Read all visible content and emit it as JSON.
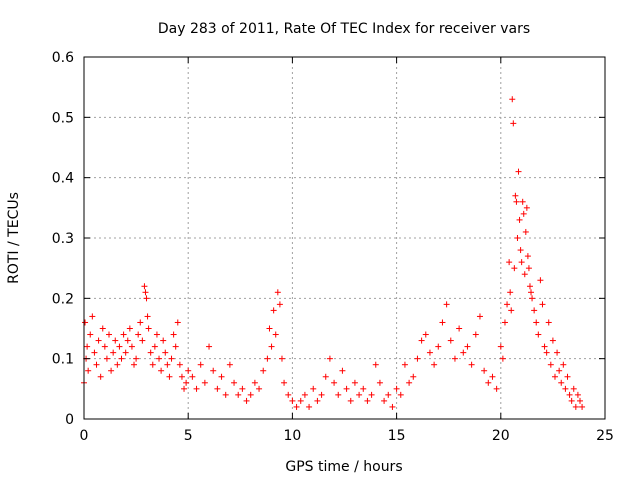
{
  "chart_data": {
    "type": "scatter",
    "title": "Day 283 of 2011, Rate Of TEC Index for receiver vars",
    "xlabel": "GPS time / hours",
    "ylabel": "ROTI / TECUs",
    "xlim": [
      0,
      25
    ],
    "ylim": [
      0,
      0.6
    ],
    "x_ticks": [
      0,
      5,
      10,
      15,
      20,
      25
    ],
    "x_tick_labels": [
      "0",
      "5",
      "10",
      "15",
      "20",
      "25"
    ],
    "y_ticks": [
      0,
      0.1,
      0.2,
      0.3,
      0.4,
      0.5,
      0.6
    ],
    "y_tick_labels": [
      "0",
      "0.1",
      "0.2",
      "0.3",
      "0.4",
      "0.5",
      "0.6"
    ],
    "grid": true,
    "marker": "+",
    "marker_color": "#ff0000",
    "series": [
      {
        "name": "ROTI",
        "x": [
          0.0,
          0.05,
          0.1,
          0.15,
          0.2,
          0.3,
          0.4,
          0.5,
          0.6,
          0.7,
          0.8,
          0.9,
          1.0,
          1.1,
          1.2,
          1.3,
          1.4,
          1.5,
          1.6,
          1.7,
          1.8,
          1.9,
          2.0,
          2.1,
          2.2,
          2.3,
          2.4,
          2.5,
          2.6,
          2.7,
          2.8,
          2.9,
          2.95,
          3.0,
          3.05,
          3.1,
          3.2,
          3.3,
          3.4,
          3.5,
          3.6,
          3.7,
          3.8,
          3.9,
          4.0,
          4.1,
          4.2,
          4.3,
          4.4,
          4.5,
          4.6,
          4.7,
          4.8,
          4.9,
          5.0,
          5.2,
          5.4,
          5.6,
          5.8,
          6.0,
          6.2,
          6.4,
          6.6,
          6.8,
          7.0,
          7.2,
          7.4,
          7.6,
          7.8,
          8.0,
          8.2,
          8.4,
          8.6,
          8.8,
          8.9,
          9.0,
          9.1,
          9.2,
          9.3,
          9.4,
          9.5,
          9.6,
          9.8,
          10.0,
          10.2,
          10.4,
          10.6,
          10.8,
          11.0,
          11.2,
          11.4,
          11.6,
          11.8,
          12.0,
          12.2,
          12.4,
          12.6,
          12.8,
          13.0,
          13.2,
          13.4,
          13.6,
          13.8,
          14.0,
          14.2,
          14.4,
          14.6,
          14.8,
          15.0,
          15.2,
          15.4,
          15.6,
          15.8,
          16.0,
          16.2,
          16.4,
          16.6,
          16.8,
          17.0,
          17.2,
          17.4,
          17.6,
          17.8,
          18.0,
          18.2,
          18.4,
          18.6,
          18.8,
          19.0,
          19.2,
          19.4,
          19.6,
          19.8,
          20.0,
          20.1,
          20.2,
          20.3,
          20.4,
          20.45,
          20.5,
          20.55,
          20.6,
          20.65,
          20.7,
          20.75,
          20.8,
          20.85,
          20.9,
          20.95,
          21.0,
          21.05,
          21.1,
          21.15,
          21.2,
          21.25,
          21.3,
          21.35,
          21.4,
          21.45,
          21.5,
          21.6,
          21.7,
          21.8,
          21.9,
          22.0,
          22.1,
          22.2,
          22.3,
          22.4,
          22.5,
          22.6,
          22.7,
          22.8,
          22.9,
          23.0,
          23.1,
          23.2,
          23.3,
          23.4,
          23.5,
          23.6,
          23.7,
          23.8,
          23.9
        ],
        "y": [
          0.06,
          0.16,
          0.1,
          0.12,
          0.08,
          0.14,
          0.17,
          0.11,
          0.09,
          0.13,
          0.07,
          0.15,
          0.12,
          0.1,
          0.14,
          0.08,
          0.11,
          0.13,
          0.09,
          0.12,
          0.1,
          0.14,
          0.11,
          0.13,
          0.15,
          0.12,
          0.09,
          0.1,
          0.14,
          0.16,
          0.13,
          0.22,
          0.21,
          0.2,
          0.17,
          0.15,
          0.11,
          0.09,
          0.12,
          0.14,
          0.1,
          0.08,
          0.13,
          0.11,
          0.09,
          0.07,
          0.1,
          0.14,
          0.12,
          0.16,
          0.09,
          0.07,
          0.05,
          0.06,
          0.08,
          0.07,
          0.05,
          0.09,
          0.06,
          0.12,
          0.08,
          0.05,
          0.07,
          0.04,
          0.09,
          0.06,
          0.04,
          0.05,
          0.03,
          0.04,
          0.06,
          0.05,
          0.08,
          0.1,
          0.15,
          0.12,
          0.18,
          0.14,
          0.21,
          0.19,
          0.1,
          0.06,
          0.04,
          0.03,
          0.02,
          0.03,
          0.04,
          0.02,
          0.05,
          0.03,
          0.04,
          0.07,
          0.1,
          0.06,
          0.04,
          0.08,
          0.05,
          0.03,
          0.06,
          0.04,
          0.05,
          0.03,
          0.04,
          0.09,
          0.06,
          0.03,
          0.04,
          0.02,
          0.05,
          0.04,
          0.09,
          0.06,
          0.07,
          0.1,
          0.13,
          0.14,
          0.11,
          0.09,
          0.12,
          0.16,
          0.19,
          0.13,
          0.1,
          0.15,
          0.11,
          0.12,
          0.09,
          0.14,
          0.17,
          0.08,
          0.06,
          0.07,
          0.05,
          0.12,
          0.1,
          0.16,
          0.19,
          0.26,
          0.21,
          0.18,
          0.53,
          0.49,
          0.25,
          0.37,
          0.36,
          0.3,
          0.41,
          0.33,
          0.28,
          0.26,
          0.36,
          0.34,
          0.24,
          0.31,
          0.35,
          0.27,
          0.25,
          0.22,
          0.21,
          0.2,
          0.18,
          0.16,
          0.14,
          0.23,
          0.19,
          0.12,
          0.11,
          0.16,
          0.09,
          0.13,
          0.07,
          0.11,
          0.08,
          0.06,
          0.09,
          0.05,
          0.07,
          0.04,
          0.03,
          0.05,
          0.02,
          0.04,
          0.03,
          0.02
        ]
      }
    ]
  }
}
